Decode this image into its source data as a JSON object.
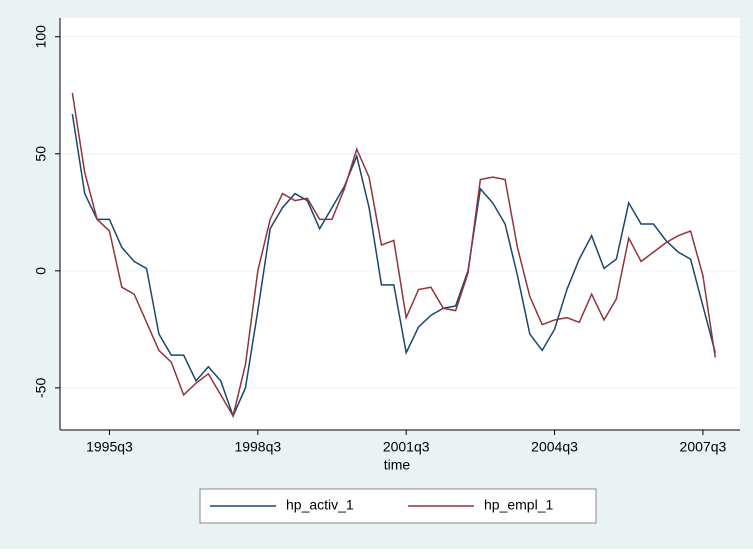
{
  "chart_data": {
    "type": "line",
    "x": [
      "1994q4",
      "1995q1",
      "1995q2",
      "1995q3",
      "1995q4",
      "1996q1",
      "1996q2",
      "1996q3",
      "1996q4",
      "1997q1",
      "1997q2",
      "1997q3",
      "1997q4",
      "1998q1",
      "1998q2",
      "1998q3",
      "1998q4",
      "1999q1",
      "1999q2",
      "1999q3",
      "1999q4",
      "2000q1",
      "2000q2",
      "2000q3",
      "2000q4",
      "2001q1",
      "2001q2",
      "2001q3",
      "2001q4",
      "2002q1",
      "2002q2",
      "2002q3",
      "2002q4",
      "2003q1",
      "2003q2",
      "2003q3",
      "2003q4",
      "2004q1",
      "2004q2",
      "2004q3",
      "2004q4",
      "2005q1",
      "2005q2",
      "2005q3",
      "2005q4",
      "2006q1",
      "2006q2",
      "2006q3",
      "2006q4",
      "2007q1",
      "2007q2",
      "2007q3",
      "2007q4"
    ],
    "series": [
      {
        "name": "hp_activ_1",
        "color": "#1a476f",
        "values": [
          67,
          33,
          22,
          22,
          10,
          4,
          1,
          -27,
          -36,
          -36,
          -47,
          -41,
          -47,
          -62,
          -50,
          -17,
          18,
          27,
          33,
          30,
          18,
          27,
          36,
          49,
          27,
          -6,
          -6,
          -35,
          -24,
          -19,
          -16,
          -15,
          0,
          35,
          29,
          20,
          -2,
          -27,
          -34,
          -25,
          -8,
          5,
          15,
          1,
          5,
          29,
          20,
          20,
          13,
          8,
          5,
          -15,
          -35
        ]
      },
      {
        "name": "hp_empl_1",
        "color": "#90353b",
        "values": [
          76,
          42,
          22,
          17,
          -7,
          -10,
          -22,
          -34,
          -39,
          -53,
          -48,
          -44,
          -53,
          -62,
          -40,
          0,
          22,
          33,
          30,
          31,
          22,
          22,
          35,
          52,
          40,
          11,
          13,
          -20,
          -8,
          -7,
          -16,
          -17,
          -1,
          39,
          40,
          39,
          10,
          -11,
          -23,
          -21,
          -20,
          -22,
          -10,
          -21,
          -12,
          14,
          4,
          8,
          12,
          15,
          17,
          -2,
          -37
        ]
      }
    ],
    "xlabel": "time",
    "xlim": [
      "1994q3",
      "2008q2"
    ],
    "xticks": [
      "1995q3",
      "1998q3",
      "2001q3",
      "2004q3",
      "2007q3"
    ],
    "ylim": [
      -68,
      108
    ],
    "yticks": [
      -50,
      0,
      50,
      100
    ],
    "grid": true
  }
}
